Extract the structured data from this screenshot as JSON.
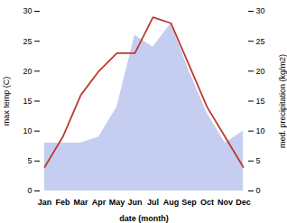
{
  "chart_data": {
    "type": "line",
    "categories": [
      "Jan",
      "Feb",
      "Mar",
      "Apr",
      "May",
      "Jun",
      "Jul",
      "Aug",
      "Sep",
      "Oct",
      "Nov",
      "Dec"
    ],
    "xlabel": "date (month)",
    "ylabel": "max temp (C)",
    "y2label": "med. precipitation (kg/m2)",
    "series": [
      {
        "type": "area",
        "axis": "y2",
        "color": "#c5cef0",
        "values": [
          8,
          8,
          8,
          9,
          14,
          26,
          24,
          28,
          20,
          13,
          8,
          10
        ]
      },
      {
        "type": "line",
        "color": "#c0392b",
        "values": [
          4,
          9,
          16,
          20,
          23,
          23,
          29,
          28,
          21,
          14,
          9,
          4
        ]
      }
    ],
    "ylim": [
      0,
      30
    ],
    "yticks": [
      0,
      5,
      10,
      15,
      20,
      25,
      30
    ],
    "y2lim": [
      0,
      30
    ],
    "y2ticks": [
      0,
      5,
      10,
      15,
      20,
      25,
      30
    ],
    "grid": false
  }
}
